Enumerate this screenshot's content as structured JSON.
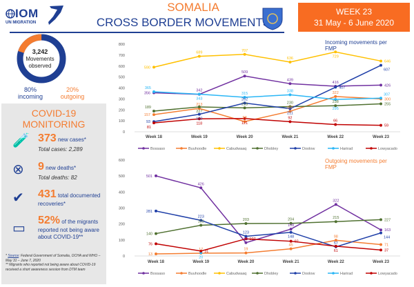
{
  "header": {
    "logo_name": "IOM",
    "logo_sub": "UN MIGRATION",
    "title_line1": "SOMALIA",
    "title_line2": "CROSS BORDER MOVEMENTS",
    "week": "WEEK 23",
    "dates": "31 May -  6 June 2020"
  },
  "summary": {
    "total": "3,242",
    "total_label1": "Movements",
    "total_label2": "observed",
    "incoming_pct": "80%",
    "incoming_label": "incoming",
    "outgoing_pct": "20%",
    "outgoing_label": "outgoing",
    "incoming_fraction": 0.8,
    "colors": {
      "incoming": "#1f3f93",
      "outgoing": "#f47c30"
    }
  },
  "covid": {
    "title1": "COVID-19",
    "title2": "MONITORING",
    "cases_num": "373",
    "cases_label": "new cases*",
    "cases_total": "Total cases: 2,289",
    "deaths_num": "9",
    "deaths_label": "new deaths*",
    "deaths_total": "Total deaths: 82",
    "recov_num": "431",
    "recov_label": "total documented recoveries*",
    "aware_num": "52%",
    "aware_label": "of the migrants reported not being aware about COVID-19**",
    "source_label": "Source",
    "source_text": ": Federal Government of Somalia, OCHA and WHO – May 31 – June 7, 2020",
    "note": "** Migrants who reported not being aware about COVID-19 received a short awareness session from DTM team"
  },
  "chart_data": [
    {
      "type": "line",
      "title": "Incoming movements per FMP",
      "title_color": "#1f3f93",
      "categories": [
        "Week 18",
        "Week 19",
        "Week 20",
        "Week 21",
        "Week 22",
        "Week 23"
      ],
      "ylim": [
        0,
        800
      ],
      "yticks": [
        0,
        100,
        200,
        300,
        400,
        500,
        600,
        700,
        800
      ],
      "legend": "bottom",
      "series": [
        {
          "name": "Bossaso",
          "color": "#7030a0",
          "values": [
            356,
            342,
            509,
            439,
            416,
            426
          ]
        },
        {
          "name": "Buuhoodle",
          "color": "#f47c30",
          "values": [
            157,
            213,
            93,
            187,
            322,
            300
          ]
        },
        {
          "name": "Cabudwaaq",
          "color": "#ffc000",
          "values": [
            590,
            689,
            707,
            636,
            729,
            646
          ]
        },
        {
          "name": "Dhobley",
          "color": "#4f7030",
          "values": [
            189,
            227,
            218,
            230,
            238,
            255
          ]
        },
        {
          "name": "Doolow",
          "color": "#1f3fa8",
          "values": [
            93,
            160,
            262,
            211,
            407,
            607
          ]
        },
        {
          "name": "Harirad",
          "color": "#29b6f6",
          "values": [
            365,
            343,
            315,
            338,
            295,
            307
          ]
        },
        {
          "name": "Lowyacado",
          "color": "#c00000",
          "values": [
            81,
            118,
            121,
            92,
            66,
            59
          ]
        }
      ]
    },
    {
      "type": "line",
      "title": "Outgoing movements per FMP",
      "title_color": "#f47c30",
      "categories": [
        "Week 18",
        "Week 19",
        "Week 20",
        "Week 21",
        "Week 22",
        "Week 23"
      ],
      "ylim": [
        0,
        600
      ],
      "yticks": [
        0,
        100,
        200,
        300,
        400,
        500,
        600
      ],
      "legend": "bottom",
      "series": [
        {
          "name": "Bossaso",
          "color": "#7030a0",
          "values": [
            501,
            426,
            83,
            168,
            322,
            163
          ]
        },
        {
          "name": "Buuhoodle",
          "color": "#f47c30",
          "values": [
            13,
            17,
            19,
            45,
            98,
            71
          ]
        },
        {
          "name": "Cabudwaaq",
          "color": "#ffc000",
          "values": [
            null,
            null,
            null,
            null,
            null,
            null
          ]
        },
        {
          "name": "Dhobley",
          "color": "#4f7030",
          "values": [
            140,
            192,
            203,
            204,
            215,
            227
          ]
        },
        {
          "name": "Doolow",
          "color": "#1f3fa8",
          "values": [
            281,
            223,
            123,
            148,
            57,
            144
          ]
        },
        {
          "name": "Harirad",
          "color": "#29b6f6",
          "values": [
            null,
            20,
            null,
            null,
            null,
            null
          ]
        },
        {
          "name": "Lowyacado",
          "color": "#c00000",
          "values": [
            76,
            31,
            107,
            92,
            61,
            37
          ]
        }
      ]
    }
  ]
}
